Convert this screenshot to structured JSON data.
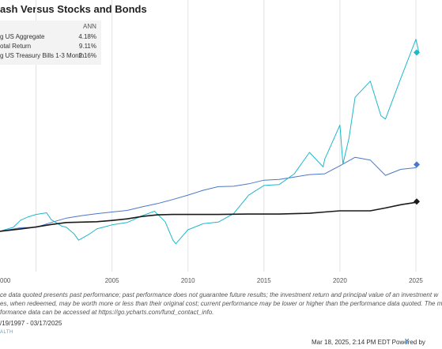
{
  "chart_data": {
    "type": "line",
    "title": "ash Versus Stocks and Bonds",
    "legend_placement": "top-left",
    "grid": {
      "vertical": true,
      "horizontal": false
    },
    "xlim": [
      1997.63,
      2025.21
    ],
    "ylim": [
      0,
      60000
    ],
    "x_ticks": [
      "000",
      "2005",
      "2010",
      "2015",
      "2020",
      "2025"
    ],
    "legend_header": "ANN",
    "series": [
      {
        "name": "g US Aggregate",
        "ann": "4.18%",
        "color": "#4a78c8",
        "points": [
          [
            1997.6,
            10000
          ],
          [
            1999.0,
            10900
          ],
          [
            2000.0,
            11000
          ],
          [
            2001.0,
            12200
          ],
          [
            2002.0,
            13300
          ],
          [
            2003.0,
            13900
          ],
          [
            2004.0,
            14400
          ],
          [
            2005.0,
            14800
          ],
          [
            2006.0,
            15200
          ],
          [
            2007.0,
            16100
          ],
          [
            2008.0,
            16900
          ],
          [
            2009.0,
            17900
          ],
          [
            2010.0,
            19000
          ],
          [
            2011.0,
            20200
          ],
          [
            2012.0,
            21100
          ],
          [
            2013.0,
            21200
          ],
          [
            2014.0,
            21800
          ],
          [
            2015.0,
            22700
          ],
          [
            2016.0,
            22900
          ],
          [
            2017.0,
            23500
          ],
          [
            2018.0,
            24100
          ],
          [
            2019.0,
            24300
          ],
          [
            2020.0,
            26300
          ],
          [
            2021.0,
            28400
          ],
          [
            2022.0,
            27700
          ],
          [
            2023.0,
            23900
          ],
          [
            2024.0,
            25400
          ],
          [
            2025.0,
            25800
          ],
          [
            2025.2,
            26600
          ]
        ]
      },
      {
        "name": "otal Return",
        "ann": "9.11%",
        "color": "#1fb8c9",
        "points": [
          [
            1997.6,
            10000
          ],
          [
            1998.5,
            11000
          ],
          [
            1999.0,
            12800
          ],
          [
            1999.5,
            13600
          ],
          [
            2000.0,
            14200
          ],
          [
            2000.7,
            14600
          ],
          [
            2001.0,
            12900
          ],
          [
            2001.7,
            11300
          ],
          [
            2002.0,
            11000
          ],
          [
            2002.5,
            9400
          ],
          [
            2002.8,
            7800
          ],
          [
            2003.5,
            9300
          ],
          [
            2004.0,
            10600
          ],
          [
            2005.0,
            11600
          ],
          [
            2006.0,
            12200
          ],
          [
            2007.0,
            13900
          ],
          [
            2007.8,
            15000
          ],
          [
            2008.5,
            12400
          ],
          [
            2009.0,
            7900
          ],
          [
            2009.2,
            6900
          ],
          [
            2010.0,
            10400
          ],
          [
            2011.0,
            11900
          ],
          [
            2012.0,
            12300
          ],
          [
            2013.0,
            14400
          ],
          [
            2014.0,
            19000
          ],
          [
            2015.0,
            21400
          ],
          [
            2016.0,
            21600
          ],
          [
            2017.0,
            24300
          ],
          [
            2018.0,
            29600
          ],
          [
            2018.9,
            26000
          ],
          [
            2019.0,
            27900
          ],
          [
            2020.0,
            36400
          ],
          [
            2020.2,
            26700
          ],
          [
            2020.6,
            33200
          ],
          [
            2021.0,
            43300
          ],
          [
            2022.0,
            47300
          ],
          [
            2022.7,
            38700
          ],
          [
            2023.0,
            37900
          ],
          [
            2024.0,
            47900
          ],
          [
            2025.0,
            57700
          ],
          [
            2025.2,
            54400
          ]
        ]
      },
      {
        "name": "g US Treasury Bills 1-3 Month",
        "ann": "2.16%",
        "color": "#1a1a1a",
        "points": [
          [
            1997.6,
            10000
          ],
          [
            1999.0,
            10600
          ],
          [
            2000.0,
            11100
          ],
          [
            2001.0,
            11700
          ],
          [
            2002.0,
            12200
          ],
          [
            2003.0,
            12300
          ],
          [
            2004.0,
            12400
          ],
          [
            2005.0,
            12700
          ],
          [
            2006.0,
            13100
          ],
          [
            2007.0,
            13700
          ],
          [
            2008.0,
            14100
          ],
          [
            2009.0,
            14200
          ],
          [
            2010.0,
            14200
          ],
          [
            2012.0,
            14200
          ],
          [
            2014.0,
            14300
          ],
          [
            2016.0,
            14300
          ],
          [
            2017.0,
            14400
          ],
          [
            2018.0,
            14500
          ],
          [
            2019.0,
            14800
          ],
          [
            2020.0,
            15100
          ],
          [
            2021.0,
            15100
          ],
          [
            2022.0,
            15100
          ],
          [
            2023.0,
            15800
          ],
          [
            2024.0,
            16600
          ],
          [
            2025.0,
            17200
          ],
          [
            2025.2,
            17400
          ]
        ]
      }
    ]
  },
  "footer": {
    "disclaimer_1": "ce data quoted presents past performance; past performance does not guarantee future results; the investment return and principal value of an investment w",
    "disclaimer_2": "es, when redeemed, may be worth more or less than their original cost; current performance may be lower or higher than the performance data quoted. The m",
    "disclaimer_3": "formance data can be accessed at https://go.ycharts.com/fund_contact_info.",
    "date_range": "/19/1997 - 03/17/2025",
    "brand": "ALTH",
    "timestamp": "Mar 18, 2025, 2:14 PM EDT Powered by",
    "logo": "Y"
  }
}
